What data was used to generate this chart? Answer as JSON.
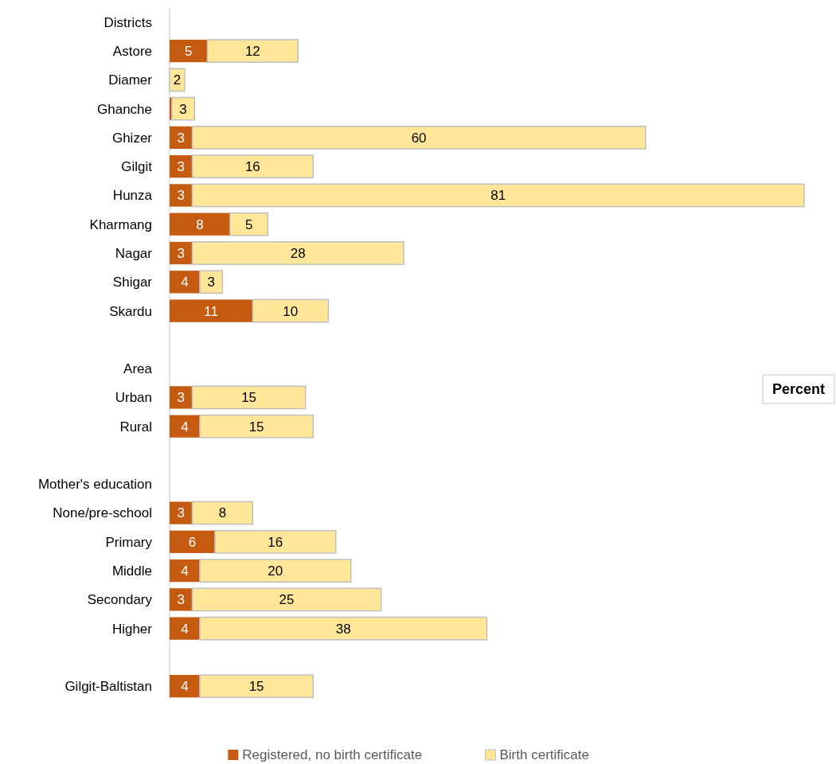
{
  "chart_data": {
    "type": "bar",
    "orientation": "horizontal",
    "stacked": true,
    "legend": "bottom",
    "annotations": [
      "Percent"
    ],
    "categories": [
      "Districts",
      "Astore",
      "Diamer",
      "Ghanche",
      "Ghizer",
      "Gilgit",
      "Hunza",
      "Kharmang",
      "Nagar",
      "Shigar",
      "Skardu",
      null,
      "Area",
      "Urban",
      "Rural",
      null,
      "Mother's education",
      "None/pre-school",
      "Primary",
      "Middle",
      "Secondary",
      "Higher",
      null,
      "Gilgit-Baltistan"
    ],
    "series": [
      {
        "name": "Registered, no birth certificate",
        "color": "#c55a11",
        "values": [
          null,
          5,
          0,
          0.3,
          3,
          3,
          3,
          8,
          3,
          4,
          11,
          null,
          null,
          3,
          4,
          null,
          null,
          3,
          6,
          4,
          3,
          4,
          null,
          4
        ],
        "value_labels": [
          null,
          "5",
          null,
          null,
          "3",
          "3",
          "3",
          "8",
          "3",
          "4",
          "11",
          null,
          null,
          "3",
          "4",
          null,
          null,
          "3",
          "6",
          "4",
          "3",
          "4",
          null,
          "4"
        ]
      },
      {
        "name": "Birth certificate",
        "color": "#ffe699",
        "values": [
          null,
          12,
          2,
          3,
          60,
          16,
          81,
          5,
          28,
          3,
          10,
          null,
          null,
          15,
          15,
          null,
          null,
          8,
          16,
          20,
          25,
          38,
          null,
          15
        ],
        "value_labels": [
          null,
          "12",
          "2",
          "3",
          "60",
          "16",
          "81",
          "5",
          "28",
          "3",
          "10",
          null,
          null,
          "15",
          "15",
          null,
          null,
          "8",
          "16",
          "20",
          "25",
          "38",
          null,
          "15"
        ]
      }
    ]
  }
}
